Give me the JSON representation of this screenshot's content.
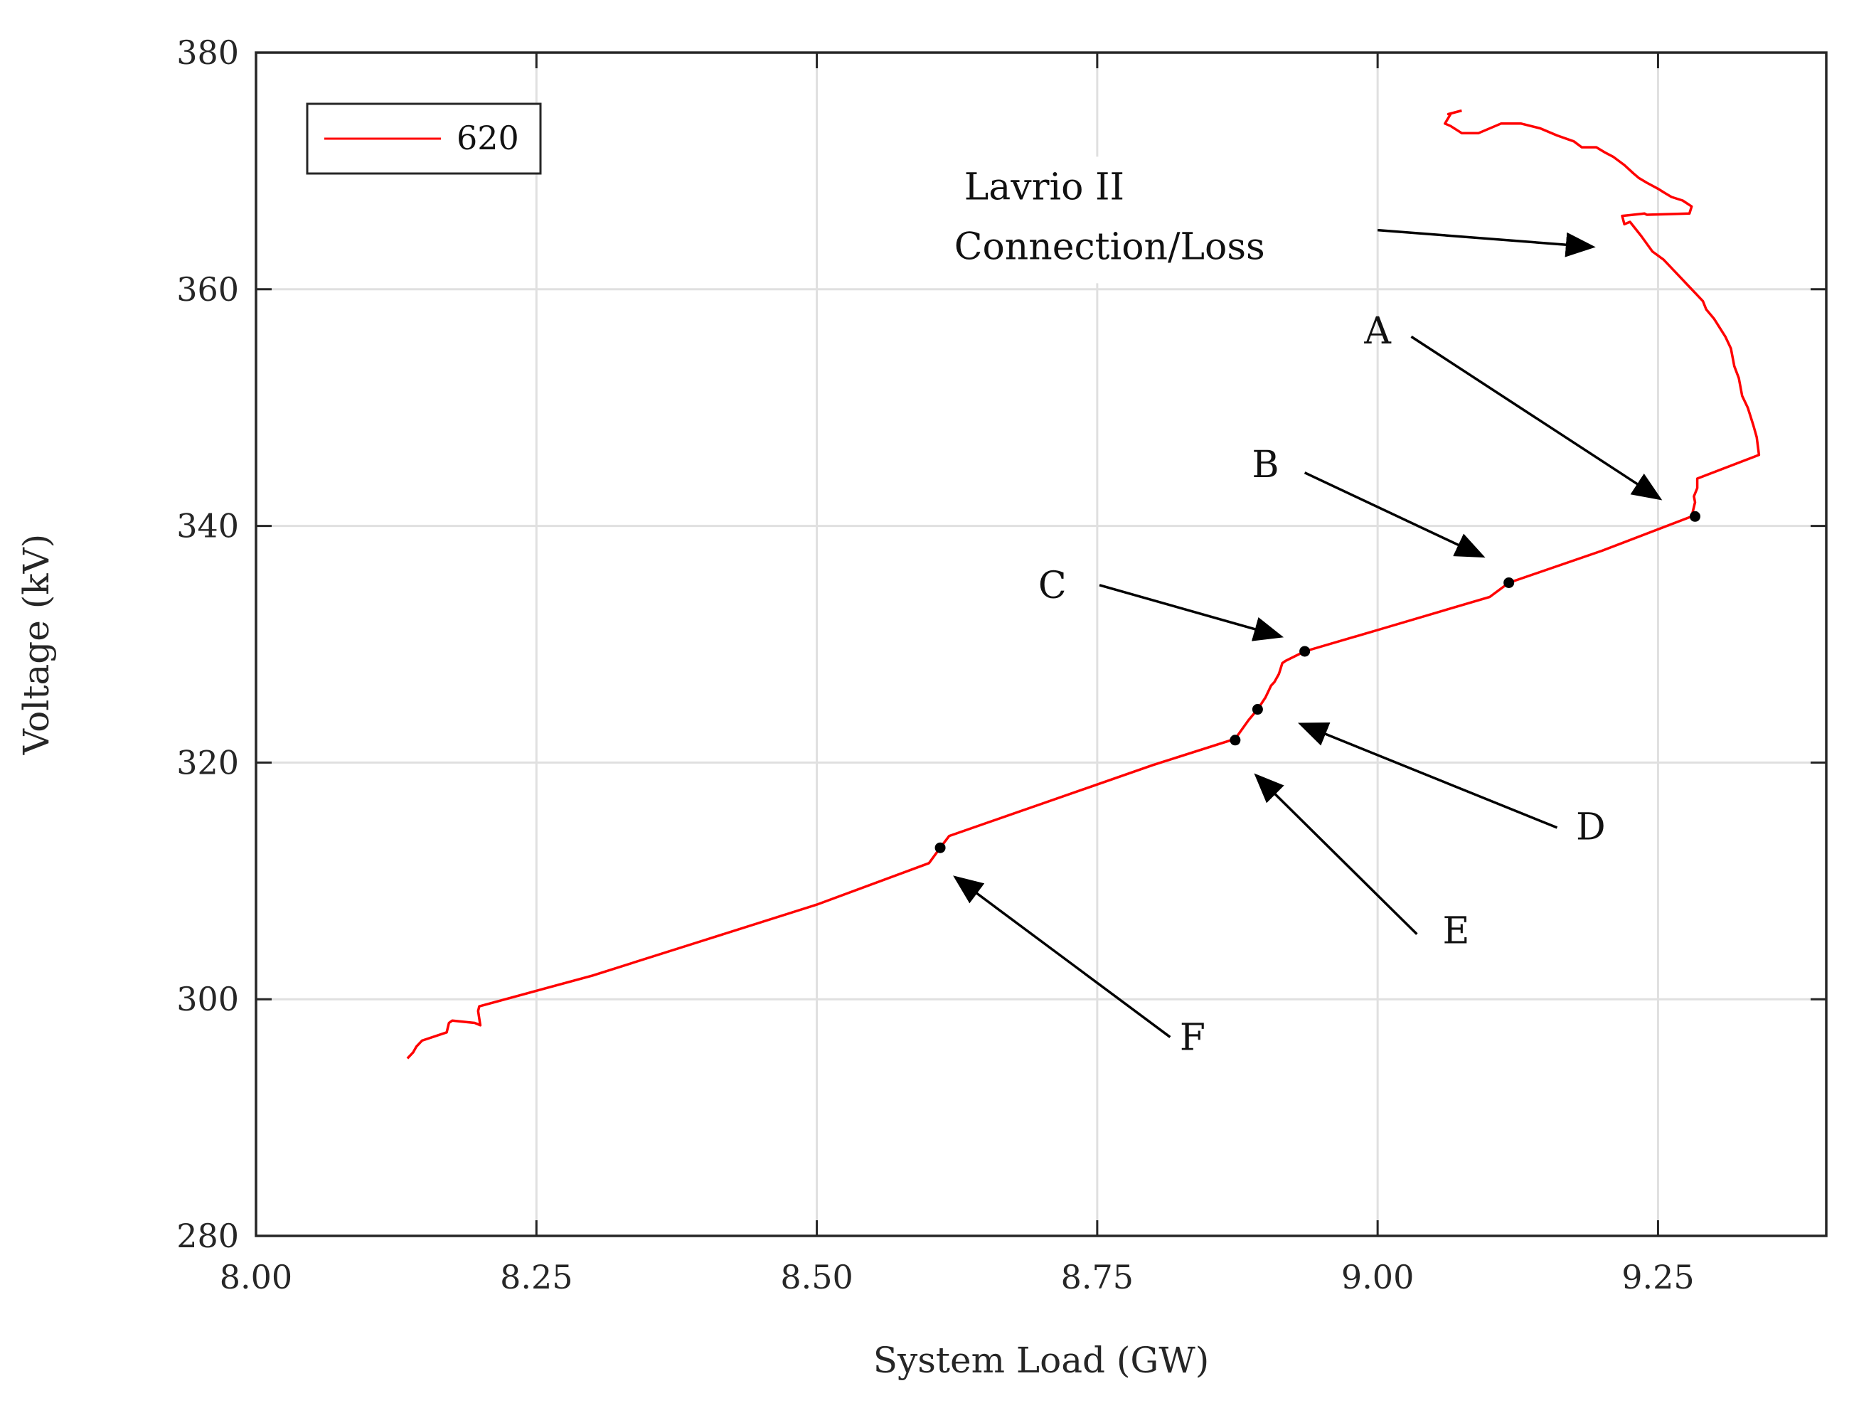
{
  "chart_data": {
    "type": "line",
    "title": "",
    "xlabel": "System Load (GW)",
    "ylabel": "Voltage (kV)",
    "xlim": [
      8.0,
      9.4
    ],
    "ylim": [
      280,
      380
    ],
    "xticks": [
      8.0,
      8.25,
      8.5,
      8.75,
      9.0,
      9.25
    ],
    "xtick_labels": [
      "8.00",
      "8.25",
      "8.50",
      "8.75",
      "9.00",
      "9.25"
    ],
    "yticks": [
      280,
      300,
      320,
      340,
      360,
      380
    ],
    "ytick_labels": [
      "280",
      "300",
      "320",
      "340",
      "360",
      "380"
    ],
    "grid": true,
    "legend": {
      "position": "top-left",
      "entries": [
        "620"
      ]
    },
    "colors": {
      "series": "#ff0000",
      "axis": "#262626",
      "grid": "#e0e0e0",
      "annotation": "#000000"
    },
    "series": [
      {
        "name": "620",
        "x": [
          8.135,
          8.14,
          8.143,
          8.148,
          8.17,
          8.172,
          8.175,
          8.195,
          8.2,
          8.198,
          8.199,
          8.3,
          8.4,
          8.5,
          8.6,
          8.61,
          8.618,
          8.7,
          8.8,
          8.873,
          8.885,
          8.893,
          8.9,
          8.905,
          8.908,
          8.912,
          8.915,
          8.918,
          8.935,
          9.0,
          9.1,
          9.117,
          9.2,
          9.28,
          9.283,
          9.282,
          9.285,
          9.285,
          9.34,
          9.338,
          9.335,
          9.33,
          9.325,
          9.322,
          9.318,
          9.315,
          9.31,
          9.3,
          9.293,
          9.29,
          9.285,
          9.275,
          9.265,
          9.255,
          9.245,
          9.235,
          9.225,
          9.22,
          9.218,
          9.238,
          9.24,
          9.278,
          9.28,
          9.272,
          9.262,
          9.255,
          9.25,
          9.24,
          9.233,
          9.228,
          9.22,
          9.21,
          9.202,
          9.195,
          9.182,
          9.175,
          9.16,
          9.145,
          9.128,
          9.11,
          9.09,
          9.075,
          9.065,
          9.06,
          9.065,
          9.063,
          9.075
        ],
        "y": [
          295.0,
          295.5,
          296.0,
          296.5,
          297.2,
          298.0,
          298.2,
          298.0,
          297.8,
          299.0,
          299.4,
          302.0,
          305.0,
          308.0,
          311.5,
          312.8,
          313.8,
          316.5,
          319.8,
          322.0,
          323.6,
          324.5,
          325.5,
          326.5,
          326.8,
          327.5,
          328.4,
          328.6,
          329.4,
          331.2,
          334.0,
          335.2,
          337.9,
          340.8,
          342.0,
          342.5,
          343.2,
          344.0,
          346.0,
          347.5,
          348.5,
          350.0,
          351.0,
          352.5,
          353.5,
          355.0,
          356.0,
          357.5,
          358.3,
          359.0,
          359.5,
          360.5,
          361.5,
          362.5,
          363.2,
          364.5,
          365.7,
          365.5,
          366.2,
          366.4,
          366.3,
          366.4,
          367.0,
          367.5,
          367.8,
          368.2,
          368.5,
          369.0,
          369.4,
          369.8,
          370.5,
          371.2,
          371.6,
          372.0,
          372.0,
          372.5,
          373.0,
          373.6,
          374.0,
          374.0,
          373.2,
          373.2,
          373.8,
          374.0,
          374.8,
          374.8,
          375.1
        ]
      }
    ],
    "markers": [
      {
        "x": 9.283,
        "y": 340.8
      },
      {
        "x": 9.117,
        "y": 335.2
      },
      {
        "x": 8.935,
        "y": 329.4
      },
      {
        "x": 8.893,
        "y": 324.5
      },
      {
        "x": 8.873,
        "y": 321.9
      },
      {
        "x": 8.61,
        "y": 312.8
      }
    ],
    "annotations": [
      {
        "label": "Lavrio II",
        "label2": "Connection/Loss",
        "text_x": 8.625,
        "text_y": 367.6,
        "arrow_from": [
          9.0,
          365.0
        ],
        "arrow_to": [
          9.19,
          363.6
        ]
      },
      {
        "label": "A",
        "text_x": 9.0,
        "text_y": 356.5,
        "arrow_from": [
          9.03,
          356.0
        ],
        "arrow_to": [
          9.25,
          342.4
        ]
      },
      {
        "label": "B",
        "text_x": 8.9,
        "text_y": 345.2,
        "arrow_from": [
          8.935,
          344.5
        ],
        "arrow_to": [
          9.092,
          337.5
        ]
      },
      {
        "label": "C",
        "text_x": 8.71,
        "text_y": 335.0,
        "arrow_from": [
          8.752,
          335.0
        ],
        "arrow_to": [
          8.912,
          330.7
        ]
      },
      {
        "label": "D",
        "text_x": 9.19,
        "text_y": 314.6,
        "arrow_from": [
          9.16,
          314.5
        ],
        "arrow_to": [
          8.933,
          323.2
        ]
      },
      {
        "label": "E",
        "text_x": 9.07,
        "text_y": 305.8,
        "arrow_from": [
          9.035,
          305.5
        ],
        "arrow_to": [
          8.893,
          318.8
        ]
      },
      {
        "label": "F",
        "text_x": 8.835,
        "text_y": 296.8,
        "arrow_from": [
          8.815,
          296.8
        ],
        "arrow_to": [
          8.625,
          310.2
        ]
      }
    ]
  }
}
